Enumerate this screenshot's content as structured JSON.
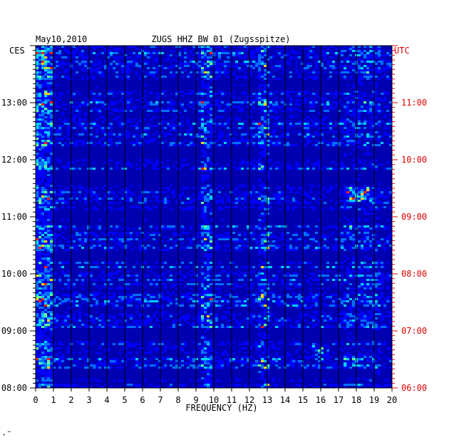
{
  "chart_data": {
    "type": "heatmap",
    "title_left": "May10,2010",
    "title": "ZUGS HHZ BW 01 (Zugsspitze)",
    "left_timezone": "CES",
    "right_timezone": "UTC",
    "xlabel": "FREQUENCY (HZ)",
    "x_ticks": [
      "0",
      "1",
      "2",
      "3",
      "4",
      "5",
      "6",
      "7",
      "8",
      "9",
      "10",
      "11",
      "12",
      "13",
      "14",
      "15",
      "16",
      "17",
      "18",
      "19",
      "20"
    ],
    "xlim": [
      0,
      20
    ],
    "left_time_ticks": [
      "08:00",
      "09:00",
      "10:00",
      "11:00",
      "12:00",
      "13:00"
    ],
    "right_time_ticks": [
      "06:00",
      "07:00",
      "08:00",
      "09:00",
      "10:00",
      "11:00"
    ],
    "colors": {
      "background": "#0000ff",
      "low": "#0000c8",
      "mid": "#00c8ff",
      "high": "#ffff00",
      "peak": "#ff0000",
      "right_axis": "#e00000"
    },
    "features": [
      {
        "name": "persistent band",
        "freq_hz": 9.6
      },
      {
        "name": "persistent band",
        "freq_hz": 12.8
      },
      {
        "name": "broadband energy",
        "freq_hz": [
          0,
          1
        ]
      },
      {
        "name": "burst",
        "freq_hz": [
          15.5,
          16.5
        ],
        "time": "08:40"
      },
      {
        "name": "burst",
        "freq_hz": [
          17.5,
          19
        ],
        "time": "11:25"
      }
    ]
  }
}
